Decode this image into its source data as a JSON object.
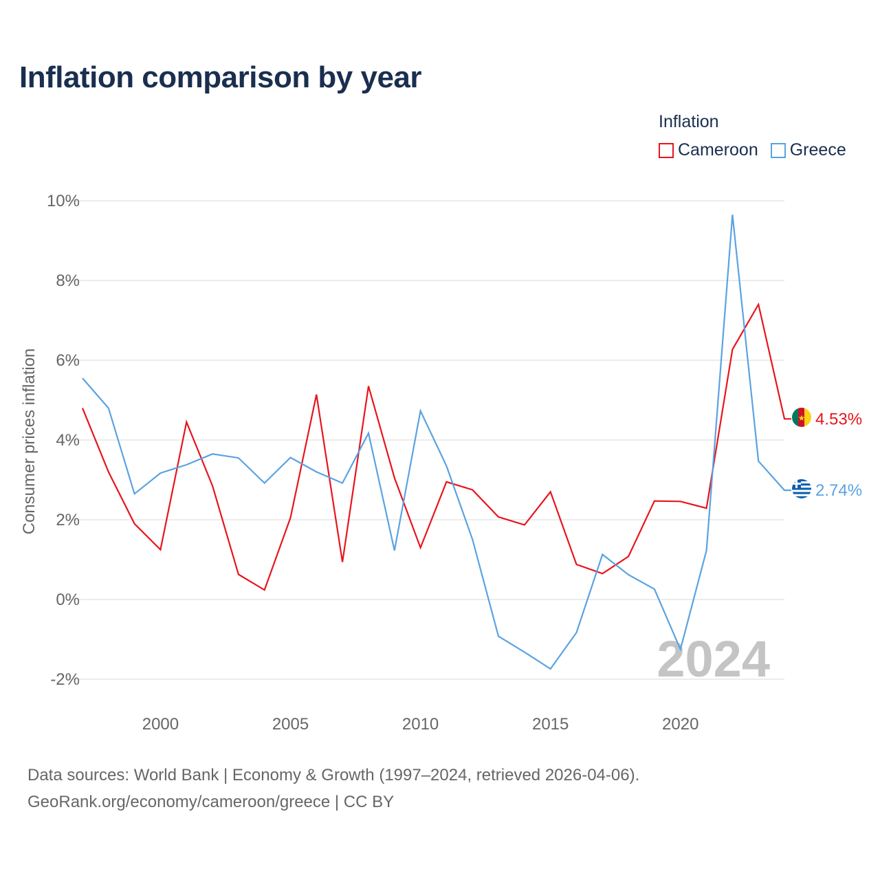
{
  "title": "Inflation comparison by year",
  "legend": {
    "title": "Inflation",
    "items": [
      {
        "label": "Cameroon",
        "color": "#e8141c"
      },
      {
        "label": "Greece",
        "color": "#5aa2e2"
      }
    ]
  },
  "watermark": "2024",
  "source": {
    "line1": "Data sources: World Bank | Economy & Growth (1997–2024, retrieved 2026-04-06).",
    "line2": "GeoRank.org/economy/cameroon/greece | CC BY"
  },
  "chart_data": {
    "type": "line",
    "title": "Inflation comparison by year",
    "ylabel": "Consumer prices inflation",
    "xlabel": "",
    "xlim": [
      1997,
      2024
    ],
    "ylim": [
      -2,
      10
    ],
    "yticks": [
      -2,
      0,
      2,
      4,
      6,
      8,
      10
    ],
    "ytick_labels": [
      "-2%",
      "0%",
      "2%",
      "4%",
      "6%",
      "8%",
      "10%"
    ],
    "xticks": [
      2000,
      2005,
      2010,
      2015,
      2020
    ],
    "xtick_labels": [
      "2000",
      "2005",
      "2010",
      "2015",
      "2020"
    ],
    "x": [
      1997,
      1998,
      1999,
      2000,
      2001,
      2002,
      2003,
      2004,
      2005,
      2006,
      2007,
      2008,
      2009,
      2010,
      2011,
      2012,
      2013,
      2014,
      2015,
      2016,
      2017,
      2018,
      2019,
      2020,
      2021,
      2022,
      2023,
      2024
    ],
    "series": [
      {
        "name": "Cameroon",
        "color": "#e8141c",
        "end_label": "4.53%",
        "values": [
          4.8,
          3.2,
          1.9,
          1.25,
          4.45,
          2.85,
          0.63,
          0.24,
          2.05,
          5.14,
          0.94,
          5.35,
          3.05,
          1.3,
          2.95,
          2.75,
          2.07,
          1.87,
          2.7,
          0.88,
          0.65,
          1.08,
          2.47,
          2.46,
          2.29,
          6.27,
          7.4,
          4.53
        ]
      },
      {
        "name": "Greece",
        "color": "#5aa2e2",
        "end_label": "2.74%",
        "values": [
          5.55,
          4.8,
          2.65,
          3.17,
          3.38,
          3.65,
          3.55,
          2.92,
          3.56,
          3.2,
          2.92,
          4.17,
          1.23,
          4.73,
          3.35,
          1.51,
          -0.92,
          -1.32,
          -1.74,
          -0.83,
          1.13,
          0.62,
          0.26,
          -1.25,
          1.23,
          9.65,
          3.47,
          2.74
        ]
      }
    ]
  }
}
